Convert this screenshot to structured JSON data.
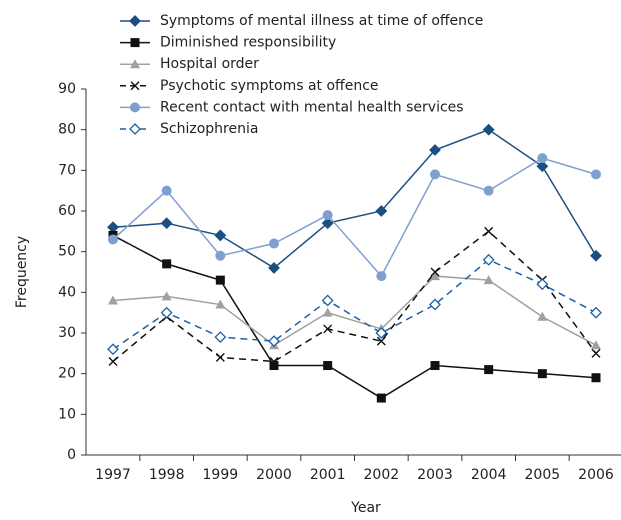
{
  "chart_data": {
    "type": "line",
    "xlabel": "Year",
    "ylabel": "Frequency",
    "categories": [
      "1997",
      "1998",
      "1999",
      "2000",
      "2001",
      "2002",
      "2003",
      "2004",
      "2005",
      "2006"
    ],
    "series": [
      {
        "name": "Symptoms of mental illness at time of offence",
        "color": "#1b4f82",
        "marker": "diamond",
        "dashed": false,
        "values": [
          56,
          57,
          54,
          46,
          57,
          60,
          75,
          80,
          71,
          49
        ]
      },
      {
        "name": "Diminished responsibility",
        "color": "#111111",
        "marker": "square",
        "dashed": false,
        "values": [
          54,
          47,
          43,
          22,
          22,
          14,
          22,
          21,
          20,
          19
        ]
      },
      {
        "name": "Hospital order",
        "color": "#a0a0a0",
        "marker": "triangle",
        "dashed": false,
        "values": [
          38,
          39,
          37,
          27,
          35,
          31,
          44,
          43,
          34,
          27
        ]
      },
      {
        "name": "Psychotic symptoms at offence",
        "color": "#111111",
        "marker": "x",
        "dashed": true,
        "values": [
          23,
          34,
          24,
          23,
          31,
          28,
          45,
          55,
          43,
          25
        ]
      },
      {
        "name": "Recent contact with mental health services",
        "color": "#7f9fcf",
        "marker": "circle",
        "dashed": false,
        "values": [
          53,
          65,
          49,
          52,
          59,
          44,
          69,
          65,
          73,
          69
        ]
      },
      {
        "name": "Schizophrenia",
        "color": "#1f5fa6",
        "marker": "open-diamond",
        "dashed": true,
        "values": [
          26,
          35,
          29,
          28,
          38,
          30,
          37,
          48,
          42,
          35
        ]
      }
    ],
    "ylim": [
      0,
      90
    ],
    "yticks": [
      0,
      10,
      20,
      30,
      40,
      50,
      60,
      70,
      80,
      90
    ],
    "grid": false
  }
}
